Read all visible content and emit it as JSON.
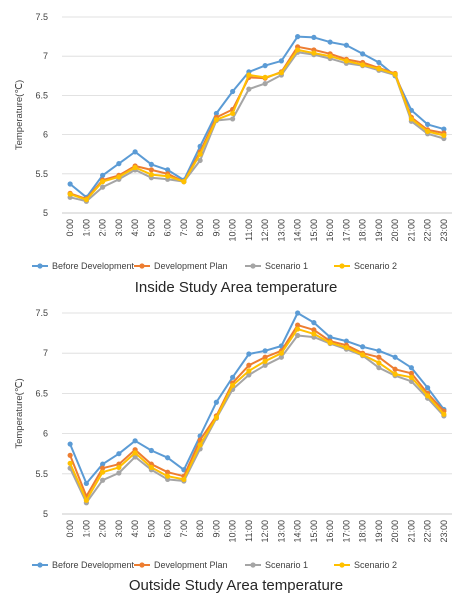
{
  "chart_data": [
    {
      "type": "line",
      "title": "",
      "caption": "Inside Study Area temperature",
      "xlabel": "",
      "ylabel": "Temperature(℃)",
      "ylim": [
        5,
        7.5
      ],
      "yticks": [
        "5",
        "5.5",
        "6",
        "6.5",
        "7",
        "7.5"
      ],
      "categories": [
        "0:00",
        "1:00",
        "2:00",
        "3:00",
        "4:00",
        "5:00",
        "6:00",
        "7:00",
        "8:00",
        "9:00",
        "10:00",
        "11:00",
        "12:00",
        "13:00",
        "14:00",
        "15:00",
        "16:00",
        "17:00",
        "18:00",
        "19:00",
        "20:00",
        "21:00",
        "22:00",
        "23:00"
      ],
      "grid": "horizontal",
      "legend": "bottom",
      "series": [
        {
          "name": "Before Development",
          "color": "#5b9bd5",
          "values": [
            5.37,
            5.2,
            5.48,
            5.63,
            5.78,
            5.62,
            5.55,
            5.42,
            5.85,
            6.27,
            6.55,
            6.8,
            6.88,
            6.94,
            7.25,
            7.24,
            7.18,
            7.14,
            7.03,
            6.92,
            6.75,
            6.31,
            6.13,
            6.07
          ]
        },
        {
          "name": "Development Plan",
          "color": "#ed7d31",
          "values": [
            5.25,
            5.18,
            5.42,
            5.48,
            5.6,
            5.55,
            5.5,
            5.4,
            5.78,
            6.22,
            6.32,
            6.73,
            6.72,
            6.8,
            7.12,
            7.08,
            7.03,
            6.96,
            6.92,
            6.85,
            6.78,
            6.22,
            6.06,
            6.02
          ]
        },
        {
          "name": "Scenario 1",
          "color": "#a5a5a5",
          "values": [
            5.2,
            5.15,
            5.33,
            5.43,
            5.55,
            5.45,
            5.43,
            5.4,
            5.67,
            6.18,
            6.2,
            6.58,
            6.65,
            6.76,
            7.05,
            7.02,
            6.97,
            6.91,
            6.88,
            6.82,
            6.76,
            6.17,
            6.01,
            5.95
          ]
        },
        {
          "name": "Scenario 2",
          "color": "#ffc000",
          "values": [
            5.24,
            5.17,
            5.4,
            5.46,
            5.58,
            5.49,
            5.47,
            5.4,
            5.75,
            6.19,
            6.27,
            6.76,
            6.73,
            6.79,
            7.08,
            7.04,
            7.0,
            6.94,
            6.89,
            6.84,
            6.77,
            6.2,
            6.04,
            5.99
          ]
        }
      ]
    },
    {
      "type": "line",
      "title": "",
      "caption": "Outside Study Area temperature",
      "xlabel": "",
      "ylabel": "Temperature(℃)",
      "ylim": [
        5,
        7.5
      ],
      "yticks": [
        "5",
        "5.5",
        "6",
        "6.5",
        "7",
        "7.5"
      ],
      "categories": [
        "0:00",
        "1:00",
        "2:00",
        "3:00",
        "4:00",
        "5:00",
        "6:00",
        "7:00",
        "8:00",
        "9:00",
        "10:00",
        "11:00",
        "12:00",
        "13:00",
        "14:00",
        "15:00",
        "16:00",
        "17:00",
        "18:00",
        "19:00",
        "20:00",
        "21:00",
        "22:00",
        "23:00"
      ],
      "grid": "horizontal",
      "legend": "bottom",
      "series": [
        {
          "name": "Before Development",
          "color": "#5b9bd5",
          "values": [
            5.87,
            5.38,
            5.62,
            5.75,
            5.91,
            5.79,
            5.7,
            5.55,
            5.97,
            6.39,
            6.7,
            6.99,
            7.03,
            7.09,
            7.5,
            7.38,
            7.2,
            7.15,
            7.08,
            7.03,
            6.95,
            6.82,
            6.57,
            6.3
          ]
        },
        {
          "name": "Development Plan",
          "color": "#ed7d31",
          "values": [
            5.73,
            5.22,
            5.57,
            5.62,
            5.8,
            5.62,
            5.52,
            5.47,
            5.92,
            6.22,
            6.63,
            6.85,
            6.95,
            7.03,
            7.35,
            7.29,
            7.15,
            7.1,
            7.0,
            6.95,
            6.8,
            6.75,
            6.5,
            6.28
          ]
        },
        {
          "name": "Scenario 1",
          "color": "#a5a5a5",
          "values": [
            5.57,
            5.14,
            5.42,
            5.51,
            5.71,
            5.55,
            5.43,
            5.41,
            5.81,
            6.19,
            6.55,
            6.73,
            6.85,
            6.95,
            7.22,
            7.2,
            7.12,
            7.05,
            6.97,
            6.82,
            6.72,
            6.65,
            6.44,
            6.22
          ]
        },
        {
          "name": "Scenario 2",
          "color": "#ffc000",
          "values": [
            5.63,
            5.17,
            5.52,
            5.58,
            5.76,
            5.58,
            5.47,
            5.43,
            5.86,
            6.2,
            6.6,
            6.78,
            6.9,
            7.0,
            7.3,
            7.24,
            7.13,
            7.07,
            6.98,
            6.88,
            6.74,
            6.7,
            6.47,
            6.24
          ]
        }
      ]
    }
  ]
}
